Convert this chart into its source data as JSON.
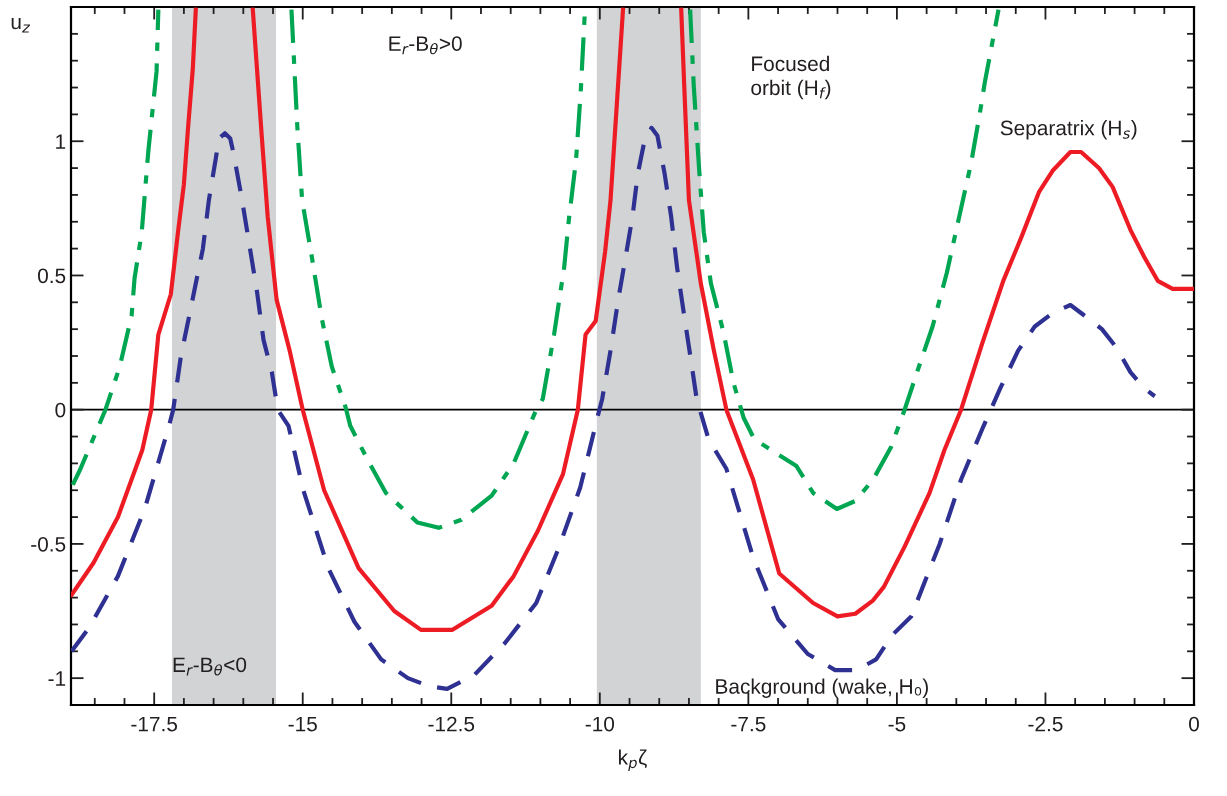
{
  "chart_data": {
    "type": "line",
    "xlabel": "k$_{p}$ζ",
    "ylabel": "u$_{z}$",
    "xlim": [
      -18.9,
      0
    ],
    "ylim": [
      -1.1,
      1.5
    ],
    "xticks": [
      -17.5,
      -15,
      -12.5,
      -10,
      -7.5,
      -5,
      -2.5,
      0
    ],
    "yticks": [
      -1,
      -0.5,
      0,
      0.5,
      1
    ],
    "grid": false,
    "legend": false,
    "annotations": [
      "E$_{r}$-B$_{θ}$>0"
    ],
    "bands": [
      {
        "axis": "x",
        "from": -17.2,
        "to": -15.45,
        "label": "E$_{r}$-B$_{θ}$<0",
        "color": "#d1d3d4"
      },
      {
        "axis": "x",
        "from": -10.05,
        "to": -8.3,
        "color": "#d1d3d4"
      }
    ],
    "ref_lines": [
      {
        "axis": "y",
        "value": 0,
        "color": "#000000",
        "line_style": "solid"
      }
    ],
    "series": [
      {
        "name": "Focused\norbit (H$_{f}$)",
        "color": "#00a651",
        "line_style": "dashdot",
        "x": [
          -18.87,
          -18.74,
          -18.32,
          -18.08,
          -17.88,
          -17.83,
          -17.71,
          -17.6,
          -17.46,
          -17.43,
          null,
          -15.19,
          -15.09,
          -15.01,
          -14.84,
          -14.68,
          -14.51,
          -14.28,
          -14.2,
          -13.9,
          -13.6,
          -13.07,
          -12.71,
          -12.33,
          -11.82,
          -11.45,
          -11.07,
          -10.96,
          -10.77,
          -10.6,
          -10.52,
          -10.4,
          -10.32,
          -10.25,
          null,
          -8.48,
          -8.42,
          -8.33,
          -8.25,
          -8.13,
          -7.92,
          -7.75,
          -7.58,
          -7.4,
          -6.69,
          -6.41,
          -6.01,
          -5.7,
          -5.4,
          -5.1,
          -4.87,
          -4.63,
          -4.4,
          -4.16,
          -3.95,
          -3.75,
          -3.6,
          -3.52,
          -3.29
        ],
        "values": [
          -0.28,
          -0.22,
          0,
          0.16,
          0.35,
          0.49,
          0.66,
          0.96,
          1.26,
          1.49,
          null,
          1.49,
          1.05,
          0.78,
          0.56,
          0.34,
          0.16,
          0.01,
          -0.06,
          -0.19,
          -0.31,
          -0.42,
          -0.44,
          -0.41,
          -0.32,
          -0.2,
          0,
          0.04,
          0.28,
          0.53,
          0.71,
          0.93,
          1.19,
          1.49,
          null,
          1.49,
          1.21,
          0.9,
          0.66,
          0.47,
          0.29,
          0.1,
          -0.03,
          -0.11,
          -0.21,
          -0.31,
          -0.37,
          -0.34,
          -0.26,
          -0.14,
          0,
          0.16,
          0.31,
          0.51,
          0.72,
          0.92,
          1.11,
          1.22,
          1.49
        ]
      },
      {
        "name": "Separatrix (H$_{s}$)",
        "color": "#ed1c24",
        "line_style": "solid",
        "x": [
          -18.89,
          -18.52,
          -18.11,
          -17.7,
          -17.55,
          -17.43,
          -17.22,
          -17.1,
          -17.0,
          -16.93,
          -16.85,
          -16.8,
          null,
          -15.84,
          -15.77,
          -15.69,
          -15.59,
          -15.44,
          -15.22,
          -15.0,
          -14.64,
          -14.06,
          -13.46,
          -13.01,
          -12.48,
          -11.82,
          -11.45,
          -11.04,
          -10.62,
          -10.37,
          -10.24,
          -10.07,
          -9.91,
          -9.82,
          -9.71,
          -9.61,
          null,
          -8.63,
          -8.58,
          -8.5,
          -8.3,
          -8.08,
          -7.87,
          -7.42,
          -6.98,
          -6.41,
          -6.0,
          -5.7,
          -5.4,
          -5.22,
          -4.87,
          -4.45,
          -4.2,
          -3.92,
          -3.56,
          -3.21,
          -2.91,
          -2.61,
          -2.38,
          -2.08,
          -1.9,
          -1.6,
          -1.37,
          -1.07,
          -0.84,
          -0.61,
          -0.36,
          -0.02
        ],
        "values": [
          -0.69,
          -0.57,
          -0.4,
          -0.15,
          0,
          0.28,
          0.43,
          0.66,
          0.84,
          1.05,
          1.27,
          1.49,
          null,
          1.49,
          1.27,
          1.02,
          0.72,
          0.41,
          0.22,
          0,
          -0.3,
          -0.59,
          -0.75,
          -0.82,
          -0.82,
          -0.73,
          -0.62,
          -0.45,
          -0.24,
          0,
          0.28,
          0.33,
          0.59,
          0.78,
          1.15,
          1.49,
          null,
          1.49,
          1.21,
          0.78,
          0.47,
          0.22,
          0,
          -0.26,
          -0.61,
          -0.72,
          -0.77,
          -0.76,
          -0.71,
          -0.66,
          -0.51,
          -0.31,
          -0.15,
          0,
          0.25,
          0.48,
          0.64,
          0.81,
          0.89,
          0.96,
          0.96,
          0.9,
          0.83,
          0.67,
          0.57,
          0.48,
          0.45,
          0.45
        ]
      },
      {
        "name": "Background (wake, H₀)",
        "color": "#2e3192",
        "line_style": "dashed",
        "x": [
          -18.89,
          -18.59,
          -18.11,
          -17.66,
          -17.25,
          -17.18,
          -17.05,
          -16.91,
          -16.8,
          -16.68,
          -16.58,
          -16.46,
          -16.41,
          -16.31,
          -16.22,
          -16.16,
          -16.02,
          -15.88,
          -15.77,
          -15.66,
          -15.52,
          -15.42,
          -15.24,
          -14.99,
          -14.57,
          -14.13,
          -13.68,
          -13.23,
          -12.87,
          -12.57,
          -12.12,
          -11.6,
          -11.07,
          -10.7,
          -10.33,
          -10.03,
          -9.96,
          -9.82,
          -9.69,
          -9.55,
          -9.45,
          -9.36,
          -9.25,
          -9.13,
          -9.03,
          -8.91,
          -8.8,
          -8.7,
          -8.58,
          -8.47,
          -8.37,
          -8.17,
          -7.87,
          -7.42,
          -7.0,
          -6.5,
          -6.04,
          -5.68,
          -5.35,
          -5.08,
          -4.76,
          -4.28,
          -3.92,
          -3.56,
          -3.26,
          -2.96,
          -2.68,
          -2.38,
          -2.08,
          -1.78,
          -1.55,
          -1.3,
          -1.07,
          -0.84,
          -0.66
        ],
        "values": [
          -0.9,
          -0.81,
          -0.62,
          -0.37,
          -0.06,
          0,
          0.2,
          0.35,
          0.47,
          0.6,
          0.78,
          0.94,
          1.01,
          1.03,
          1.01,
          0.95,
          0.78,
          0.59,
          0.44,
          0.26,
          0.14,
          0,
          -0.06,
          -0.3,
          -0.59,
          -0.79,
          -0.93,
          -1.0,
          -1.03,
          -1.04,
          -0.99,
          -0.87,
          -0.72,
          -0.52,
          -0.29,
          -0.02,
          0.04,
          0.22,
          0.41,
          0.59,
          0.72,
          0.88,
          1.0,
          1.05,
          1.02,
          0.88,
          0.72,
          0.53,
          0.35,
          0.19,
          0.04,
          -0.11,
          -0.22,
          -0.55,
          -0.78,
          -0.91,
          -0.97,
          -0.97,
          -0.93,
          -0.84,
          -0.77,
          -0.5,
          -0.26,
          -0.07,
          0.08,
          0.22,
          0.31,
          0.36,
          0.39,
          0.34,
          0.3,
          0.23,
          0.14,
          0.08,
          0.05
        ]
      }
    ]
  }
}
